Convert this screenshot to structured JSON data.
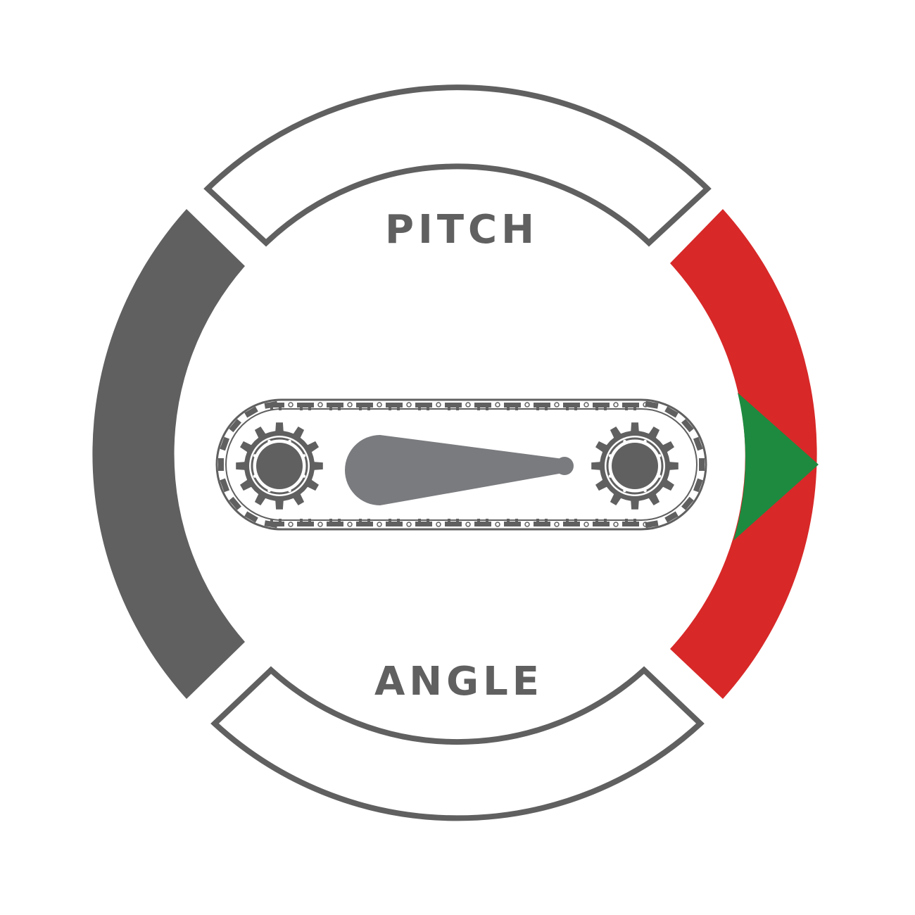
{
  "labels": {
    "top": "PITCH",
    "bottom": "ANGLE"
  },
  "colors": {
    "outline": "#606060",
    "left_segment": "#606060",
    "right_segment": "#d82828",
    "indicator": "#1e8a40",
    "label": "#606060",
    "track": "#606060",
    "pointer": "#7a7b7f",
    "background": "#ffffff"
  },
  "icons": {
    "track": "crawler-track-icon",
    "left_sprocket": "sprocket-gear-icon",
    "right_sprocket": "sprocket-gear-icon",
    "pointer": "pitch-pointer-icon",
    "indicator": "indicator-triangle-icon"
  }
}
